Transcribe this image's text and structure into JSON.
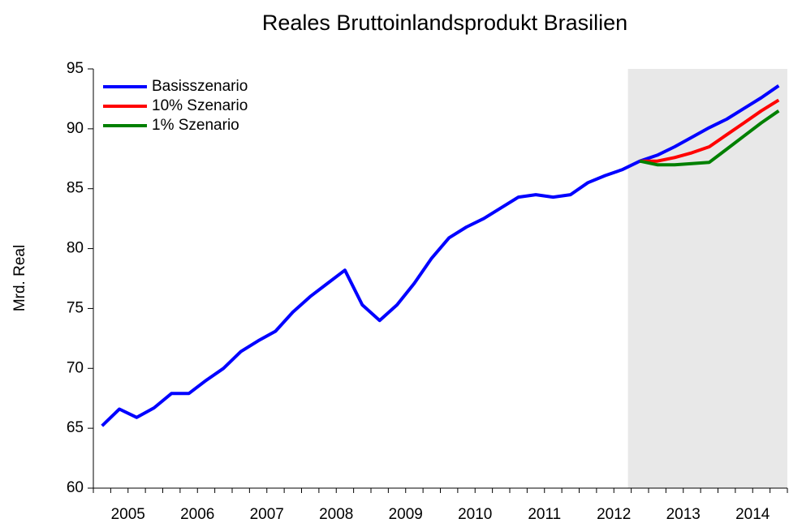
{
  "chart_data": {
    "type": "line",
    "title": "Reales Bruttoinlandsprodukt Brasilien",
    "y_label": "Mrd. Real",
    "categories": [
      "2005",
      null,
      null,
      null,
      "2006",
      null,
      null,
      null,
      "2007",
      null,
      null,
      null,
      "2008",
      null,
      null,
      null,
      "2009",
      null,
      null,
      null,
      "2010",
      null,
      null,
      null,
      "2011",
      null,
      null,
      null,
      "2012",
      null,
      null,
      null,
      "2013",
      null,
      null,
      null,
      "2014",
      null,
      null,
      null
    ],
    "series": [
      {
        "name": "Basisszenario",
        "color": "#0000ff",
        "values": [
          65.2,
          66.6,
          65.9,
          66.7,
          67.9,
          67.9,
          69.0,
          70.0,
          71.4,
          72.3,
          73.1,
          74.7,
          76.0,
          77.1,
          78.2,
          75.3,
          74.0,
          75.3,
          77.1,
          79.2,
          80.9,
          81.8,
          82.5,
          83.4,
          84.3,
          84.5,
          84.3,
          84.5,
          85.5,
          86.1,
          86.6,
          87.3,
          87.8,
          88.5,
          89.3,
          90.1,
          90.8,
          91.7,
          92.6,
          93.6
        ]
      },
      {
        "name": "10% Szenario",
        "color": "#ff0000",
        "values": [
          null,
          null,
          null,
          null,
          null,
          null,
          null,
          null,
          null,
          null,
          null,
          null,
          null,
          null,
          null,
          null,
          null,
          null,
          null,
          null,
          null,
          null,
          null,
          null,
          null,
          null,
          null,
          null,
          null,
          null,
          null,
          87.3,
          87.3,
          87.6,
          88.0,
          88.5,
          89.5,
          90.5,
          91.5,
          92.4
        ]
      },
      {
        "name": "1% Szenario",
        "color": "#008000",
        "values": [
          null,
          null,
          null,
          null,
          null,
          null,
          null,
          null,
          null,
          null,
          null,
          null,
          null,
          null,
          null,
          null,
          null,
          null,
          null,
          null,
          null,
          null,
          null,
          null,
          null,
          null,
          null,
          null,
          null,
          null,
          null,
          87.3,
          87.0,
          87.0,
          87.1,
          87.2,
          88.3,
          89.4,
          90.5,
          91.5
        ]
      }
    ],
    "ylim": [
      60,
      95
    ],
    "yticks": [
      60,
      65,
      70,
      75,
      80,
      85,
      90,
      95
    ],
    "legend": "upper left",
    "shade_color": "#e8e8e8"
  }
}
